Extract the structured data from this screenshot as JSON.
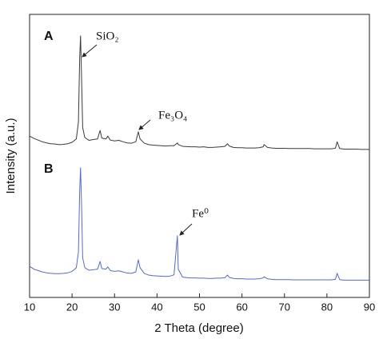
{
  "chart_data": {
    "type": "line",
    "x_label": "2 Theta (degree)",
    "y_label": "Intensity (a.u.)",
    "x": [
      10,
      11,
      12,
      13,
      14,
      15,
      16,
      17,
      18,
      19,
      20,
      21,
      21.5,
      21.8,
      22,
      22.2,
      22.5,
      23,
      24,
      25,
      26,
      26.6,
      27,
      28,
      28.4,
      29,
      30,
      31,
      32,
      33,
      34,
      35,
      35.6,
      36,
      37,
      38,
      39,
      40,
      41,
      42,
      43,
      44,
      44.8,
      45,
      46,
      47,
      48,
      49,
      50,
      51,
      52,
      53,
      54,
      55,
      56,
      56.6,
      57,
      58,
      59,
      60,
      61,
      62,
      63,
      64,
      65,
      65.2,
      66,
      67,
      68,
      69,
      70,
      71,
      72,
      73,
      74,
      75,
      76,
      77,
      78,
      79,
      80,
      81,
      82,
      82.4,
      83,
      84,
      85,
      86,
      87,
      88,
      89,
      90
    ],
    "series": [
      {
        "name": "A",
        "color": "#3a3a3a",
        "values": [
          57,
          56.2,
          55.6,
          55,
          54.6,
          54.3,
          54.2,
          54,
          54.1,
          54.3,
          54.8,
          56,
          62,
          85,
          92.4,
          80,
          60,
          56.5,
          55.5,
          55.8,
          56,
          59,
          56.3,
          56,
          57,
          55.6,
          55.3,
          55.5,
          55,
          54.6,
          54.5,
          55,
          58.5,
          56,
          54.5,
          54,
          53.8,
          53.7,
          53.6,
          53.5,
          53.6,
          53.6,
          54.6,
          54,
          53.4,
          53.3,
          53.2,
          53.2,
          53.1,
          53.2,
          53,
          53,
          53.1,
          53.2,
          53.4,
          54.3,
          53.5,
          53,
          52.9,
          52.9,
          52.8,
          52.8,
          52.8,
          52.9,
          53.2,
          54,
          53,
          52.8,
          52.7,
          52.7,
          52.7,
          52.6,
          52.6,
          52.6,
          52.6,
          52.6,
          52.6,
          52.5,
          52.5,
          52.5,
          52.5,
          52.5,
          52.7,
          55,
          52.6,
          52.4,
          52.4,
          52.4,
          52.4,
          52.3,
          52.3,
          52.3
        ]
      },
      {
        "name": "B",
        "color": "#5468d4",
        "values": [
          11,
          10,
          9.5,
          9,
          8.7,
          8.5,
          8.4,
          8.4,
          8.5,
          8.7,
          9.2,
          10.5,
          16,
          38,
          45.8,
          35,
          14,
          10.5,
          9.6,
          9.8,
          10,
          12.7,
          10.2,
          10,
          10.8,
          9.5,
          9.2,
          9.4,
          9,
          8.6,
          8.5,
          9,
          13.3,
          10.5,
          8.5,
          7.9,
          7.7,
          7.6,
          7.5,
          7.4,
          7.5,
          8,
          21.8,
          10,
          7.2,
          7,
          6.9,
          6.9,
          6.8,
          6.8,
          6.7,
          6.7,
          6.8,
          6.8,
          7,
          7.9,
          7.1,
          6.7,
          6.6,
          6.6,
          6.5,
          6.5,
          6.5,
          6.6,
          6.9,
          7.3,
          6.6,
          6.4,
          6.3,
          6.3,
          6.3,
          6.3,
          6.2,
          6.2,
          6.2,
          6.2,
          6.2,
          6.2,
          6.2,
          6.2,
          6.2,
          6.2,
          6.4,
          8.5,
          6.3,
          6.1,
          6.1,
          6.1,
          6.1,
          6.1,
          6.1,
          6.1
        ]
      }
    ],
    "annotations": [
      "SiO₂",
      "Fe₃O₄",
      "Fe⁰"
    ],
    "xlim": [
      10,
      90
    ],
    "xticks": [
      10,
      20,
      30,
      40,
      50,
      60,
      70,
      80,
      90
    ],
    "ylim": [
      0,
      100
    ]
  }
}
